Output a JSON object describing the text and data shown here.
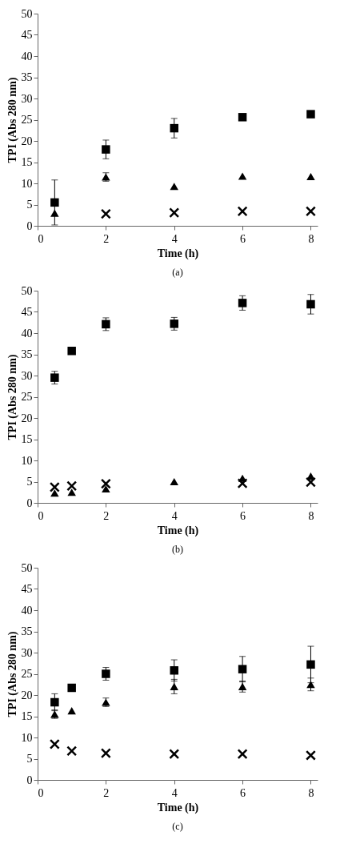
{
  "chart_data": [
    {
      "type": "scatter",
      "xlabel": "Time (h)",
      "ylabel": "TPI (Abs 280 nm)",
      "annotations": [
        "(a)"
      ],
      "xlim": [
        0,
        8.2
      ],
      "xticks": [
        0,
        2,
        4,
        6,
        8
      ],
      "ylim": [
        0,
        50
      ],
      "yticks": [
        0,
        5,
        10,
        15,
        20,
        25,
        30,
        35,
        40,
        45,
        50
      ],
      "grid": false,
      "legend": false,
      "x": [
        0.5,
        2,
        4,
        6,
        8
      ],
      "series": [
        {
          "color": "#000000",
          "marker": "square",
          "values": [
            5.5,
            18,
            23,
            25.6,
            26.3
          ],
          "errors": [
            5.3,
            2.2,
            2.3,
            null,
            null
          ]
        },
        {
          "color": "#000000",
          "marker": "triangle",
          "values": [
            3,
            11.5,
            9.3,
            11.7,
            11.6
          ],
          "errors": [
            null,
            1,
            null,
            null,
            null
          ]
        },
        {
          "color": "#000000",
          "marker": "cross",
          "values": [
            null,
            2.8,
            3.1,
            3.4,
            3.4
          ]
        }
      ]
    },
    {
      "type": "scatter",
      "xlabel": "Time (h)",
      "ylabel": "TPI (Abs 280 nm)",
      "annotations": [
        "(b)"
      ],
      "xlim": [
        0,
        8.2
      ],
      "xticks": [
        0,
        2,
        4,
        6,
        8
      ],
      "ylim": [
        0,
        50
      ],
      "yticks": [
        0,
        5,
        10,
        15,
        20,
        25,
        30,
        35,
        40,
        45,
        50
      ],
      "grid": false,
      "legend": false,
      "x": [
        0.5,
        1,
        2,
        4,
        6,
        8
      ],
      "series": [
        {
          "color": "#000000",
          "marker": "square",
          "values": [
            29.5,
            35.8,
            42.1,
            42.2,
            47.1,
            46.8
          ],
          "errors": [
            1.5,
            0.5,
            1.5,
            1.5,
            1.7,
            2.3
          ]
        },
        {
          "color": "#000000",
          "marker": "triangle",
          "values": [
            2.3,
            2.5,
            3.3,
            5,
            5.8,
            6.3
          ]
        },
        {
          "color": "#000000",
          "marker": "cross",
          "values": [
            3.7,
            4,
            4.5,
            null,
            4.6,
            4.9
          ]
        }
      ]
    },
    {
      "type": "scatter",
      "xlabel": "Time (h)",
      "ylabel": "TPI (Abs 280 nm)",
      "annotations": [
        "(c)"
      ],
      "xlim": [
        0,
        8.2
      ],
      "xticks": [
        0,
        2,
        4,
        6,
        8
      ],
      "ylim": [
        0,
        50
      ],
      "yticks": [
        0,
        5,
        10,
        15,
        20,
        25,
        30,
        35,
        40,
        45,
        50
      ],
      "grid": false,
      "legend": false,
      "x": [
        0.5,
        1,
        2,
        4,
        6,
        8
      ],
      "series": [
        {
          "color": "#000000",
          "marker": "square",
          "values": [
            18.3,
            21.7,
            25,
            25.8,
            26.1,
            27.2
          ],
          "errors": [
            2,
            0.8,
            1.5,
            2.5,
            3,
            4.3
          ]
        },
        {
          "color": "#000000",
          "marker": "triangle",
          "values": [
            15.5,
            16.3,
            18.3,
            22,
            22,
            22.5
          ],
          "errors": [
            1,
            null,
            1,
            1.7,
            1.3,
            1.5
          ]
        },
        {
          "color": "#000000",
          "marker": "cross",
          "values": [
            8.4,
            6.8,
            6.3,
            6.1,
            6.1,
            5.8
          ]
        }
      ]
    }
  ]
}
